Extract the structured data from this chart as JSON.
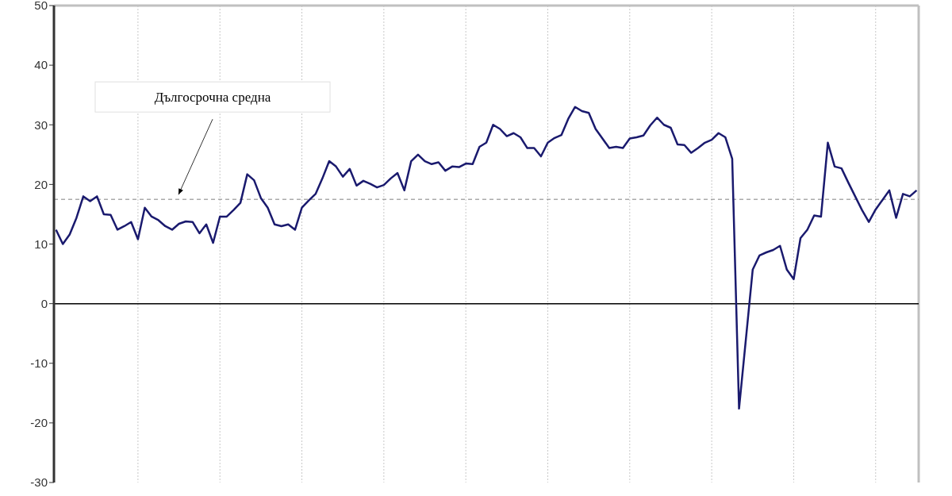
{
  "chart_data": {
    "type": "line",
    "categories": [
      null,
      null,
      null,
      null,
      null,
      null,
      null,
      null,
      null,
      null,
      null,
      null,
      null,
      null,
      null,
      null,
      null,
      null,
      null,
      null,
      null,
      null,
      null,
      null,
      null,
      null,
      null,
      null,
      null,
      null,
      null,
      null,
      null,
      null,
      null,
      null,
      null,
      null,
      null,
      null,
      null,
      null,
      null,
      null,
      null,
      null,
      null,
      null,
      null,
      null,
      null,
      null,
      null,
      null,
      null,
      null,
      null,
      null,
      null,
      null,
      null,
      null,
      null,
      null,
      null,
      null,
      null,
      null,
      null,
      null,
      null,
      null,
      null,
      null,
      null,
      null,
      null,
      null,
      null,
      null,
      null,
      null,
      null,
      null,
      null,
      null,
      null,
      null,
      null,
      null,
      null,
      null,
      null,
      null,
      null,
      null,
      null,
      null,
      null,
      null,
      null,
      null,
      null,
      null,
      null,
      null,
      null,
      null,
      null,
      null,
      null,
      null,
      null,
      null,
      null,
      null,
      null,
      null,
      null,
      null,
      null,
      null,
      null,
      null,
      null,
      null,
      null
    ],
    "series": [
      {
        "color": "#1a1a6e",
        "values": [
          12.4,
          10,
          11.6,
          14.4,
          18,
          17.2,
          18,
          15,
          14.9,
          12.4,
          13,
          13.7,
          10.8,
          16.1,
          14.6,
          14,
          13,
          12.4,
          13.4,
          13.8,
          13.7,
          11.8,
          13.3,
          10.2,
          14.6,
          14.6,
          15.7,
          16.9,
          21.7,
          20.7,
          17.7,
          16.1,
          13.3,
          13,
          13.3,
          12.4,
          16.1,
          17.3,
          18.4,
          21,
          23.9,
          23,
          21.3,
          22.6,
          19.8,
          20.6,
          20.1,
          19.5,
          19.9,
          21,
          21.9,
          19,
          23.9,
          25,
          23.9,
          23.4,
          23.7,
          22.3,
          23,
          22.9,
          23.5,
          23.4,
          26.3,
          27,
          30,
          29.3,
          28.1,
          28.6,
          27.9,
          26.1,
          26.1,
          24.7,
          27,
          27.8,
          28.3,
          31,
          33,
          32.3,
          32,
          29.3,
          27.7,
          26.1,
          26.3,
          26.1,
          27.7,
          27.9,
          28.2,
          29.9,
          31.2,
          30,
          29.5,
          26.7,
          26.6,
          25.3,
          26.1,
          27,
          27.5,
          28.6,
          27.9,
          24.3,
          -17.6,
          -6,
          5.7,
          8.1,
          8.6,
          9,
          9.7,
          5.7,
          4.1,
          11,
          12.4,
          14.8,
          14.6,
          27,
          23,
          22.7,
          20.3,
          18,
          15.7,
          13.7,
          15.8,
          17.4,
          19,
          14.4,
          18.4,
          18,
          19
        ]
      }
    ],
    "ylim": [
      -30,
      50
    ],
    "yticks": [
      -30,
      -20,
      -10,
      0,
      10,
      20,
      30,
      40,
      50
    ],
    "grid": "x",
    "marker": "none",
    "line_style": "solid",
    "ref_lines": [
      {
        "axis": "y",
        "value": 17.5,
        "label": "Дългосрочна средна",
        "color": "#808080",
        "line_style": "dashed"
      },
      {
        "axis": "y",
        "value": 0,
        "color": "#000000",
        "line_style": "solid"
      }
    ]
  }
}
